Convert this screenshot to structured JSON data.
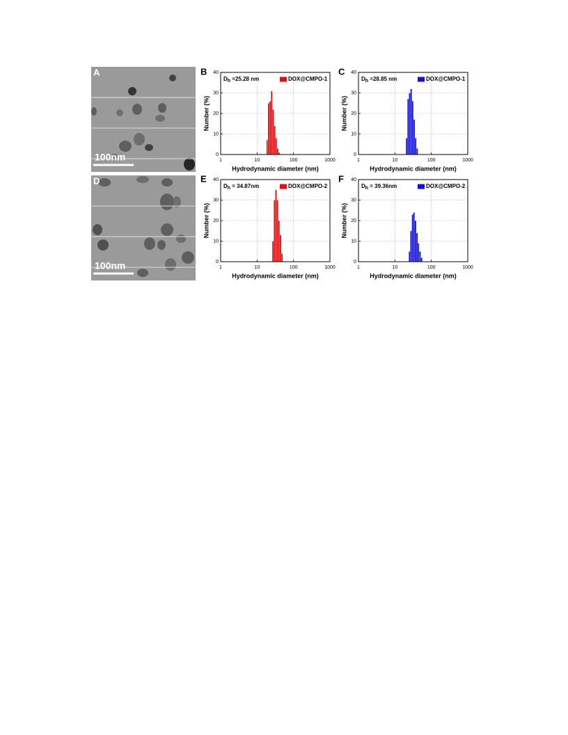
{
  "images": [
    {
      "panel": "A",
      "scale_bar": "100nm"
    },
    {
      "panel": "D",
      "scale_bar": "100nm"
    }
  ],
  "chart_data": [
    {
      "type": "histogram",
      "panel": "B",
      "annotation_symbol": "D",
      "annotation_subscript": "h",
      "annotation_text": " =25.28 nm",
      "x_label": "Hydrodynamic diameter (nm)",
      "y_label": "Number (%)",
      "xscale": "log",
      "grid": true,
      "legend": "top-right",
      "xlim": [
        1,
        1000
      ],
      "xticks": [
        1,
        10,
        100,
        1000
      ],
      "ylim": [
        0,
        40
      ],
      "yticks": [
        0,
        10,
        20,
        30,
        40
      ],
      "bins": [
        18,
        19.8,
        21.8,
        24,
        26.4,
        29,
        31.9,
        35.1,
        38.6,
        42.5
      ],
      "series": [
        {
          "name": "DOX@CMPO-1",
          "color": "#dd1111",
          "values": [
            7,
            25,
            26,
            31,
            22,
            14,
            8,
            3,
            1
          ]
        }
      ]
    },
    {
      "type": "histogram",
      "panel": "C",
      "annotation_symbol": "D",
      "annotation_subscript": "h",
      "annotation_text": " =28.85 nm",
      "x_label": "Hydrodynamic diameter (nm)",
      "y_label": "Number (%)",
      "xscale": "log",
      "grid": true,
      "legend": "top-right",
      "xlim": [
        1,
        1000
      ],
      "xticks": [
        1,
        10,
        100,
        1000
      ],
      "ylim": [
        0,
        40
      ],
      "yticks": [
        0,
        10,
        20,
        30,
        40
      ],
      "bins": [
        20,
        22,
        24.2,
        26.6,
        29.3,
        32.2,
        35.4,
        39,
        42.9
      ],
      "series": [
        {
          "name": "DOX@CMPO-1",
          "color": "#1111dd",
          "values": [
            8,
            27,
            30,
            32,
            26,
            17,
            8,
            3
          ]
        }
      ]
    },
    {
      "type": "histogram",
      "panel": "E",
      "annotation_symbol": "D",
      "annotation_subscript": "h",
      "annotation_text": " = 34.87nm",
      "x_label": "Hydrodynamic diameter (nm)",
      "y_label": "Number (%)",
      "xscale": "log",
      "grid": true,
      "legend": "top-right",
      "xlim": [
        1,
        1000
      ],
      "xticks": [
        1,
        10,
        100,
        1000
      ],
      "ylim": [
        0,
        40
      ],
      "yticks": [
        0,
        10,
        20,
        30,
        40
      ],
      "bins": [
        26,
        28.6,
        31.5,
        34.6,
        38.1,
        41.9,
        46.1,
        50.7
      ],
      "series": [
        {
          "name": "DOX@CMPO-2",
          "color": "#dd1111",
          "values": [
            10,
            30,
            35,
            30,
            20,
            13,
            4
          ]
        }
      ]
    },
    {
      "type": "histogram",
      "panel": "F",
      "annotation_symbol": "D",
      "annotation_subscript": "h",
      "annotation_text": " = 39.36nm",
      "x_label": "Hydrodynamic diameter (nm)",
      "y_label": "Number (%)",
      "xscale": "log",
      "grid": true,
      "legend": "top-right",
      "xlim": [
        1,
        1000
      ],
      "xticks": [
        1,
        10,
        100,
        1000
      ],
      "ylim": [
        0,
        40
      ],
      "yticks": [
        0,
        10,
        20,
        30,
        40
      ],
      "bins": [
        24,
        26.4,
        29,
        31.9,
        35.1,
        38.6,
        42.5,
        46.7,
        51.4,
        56.5
      ],
      "series": [
        {
          "name": "DOX@CMPO-2",
          "color": "#1111dd",
          "values": [
            5,
            15,
            23,
            24,
            20,
            14,
            9,
            5,
            2
          ]
        }
      ]
    }
  ]
}
